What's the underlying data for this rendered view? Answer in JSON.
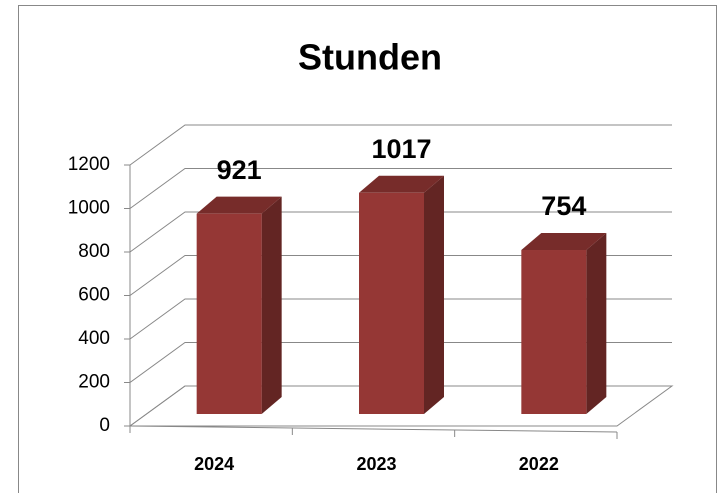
{
  "chart_data": {
    "type": "bar3d",
    "title": "Stunden",
    "categories": [
      "2024",
      "2023",
      "2022"
    ],
    "values": [
      921,
      1017,
      754
    ],
    "color": "#953735",
    "ylim": [
      0,
      1200
    ],
    "yticks": [
      0,
      200,
      400,
      600,
      800,
      1000,
      1200
    ],
    "grid": true
  }
}
